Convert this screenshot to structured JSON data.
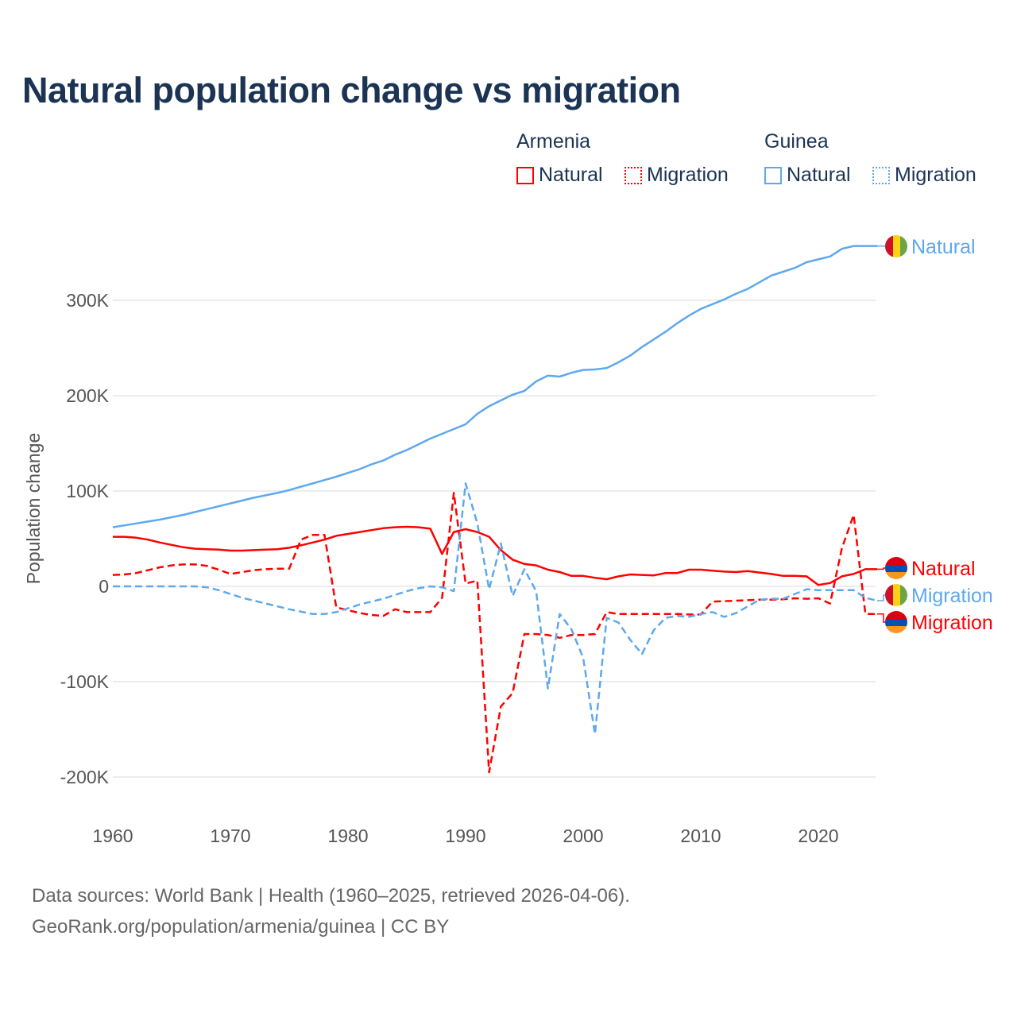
{
  "title": "Natural population change vs migration",
  "legend": {
    "groups": [
      {
        "name": "Armenia",
        "color": "#ff0000",
        "items": [
          "Natural",
          "Migration"
        ]
      },
      {
        "name": "Guinea",
        "color": "#5ea8ee",
        "items": [
          "Natural",
          "Migration"
        ]
      }
    ]
  },
  "source": {
    "line1": "Data sources: World Bank | Health (1960–2025, retrieved 2026-04-06).",
    "line2": "GeoRank.org/population/armenia/guinea | CC BY"
  },
  "chart_data": {
    "type": "line",
    "title": "Natural population change vs migration",
    "xlabel": "",
    "ylabel": "Population change",
    "xlim": [
      1960,
      2025
    ],
    "ylim": [
      -200000,
      300000
    ],
    "xticks": [
      1960,
      1970,
      1980,
      1990,
      2000,
      2010,
      2020
    ],
    "xtick_labels": [
      "1960",
      "1970",
      "1980",
      "1990",
      "2000",
      "2010",
      "2020"
    ],
    "yticks": [
      300000,
      200000,
      100000,
      0,
      -100000,
      -200000
    ],
    "ytick_labels": [
      "300K",
      "200K",
      "100K",
      "0",
      "-100K",
      "-200K"
    ],
    "grid": true,
    "x_start": 1960,
    "series": [
      {
        "name": "Armenia Natural",
        "country": "Armenia",
        "label": "Natural",
        "color": "#ff0000",
        "dash": false,
        "values": [
          52,
          52,
          51,
          49,
          46,
          43.5,
          41,
          39.5,
          39,
          38.5,
          37.5,
          37.5,
          38,
          38.5,
          39,
          40.5,
          43,
          46,
          49,
          53,
          55,
          57,
          59,
          61,
          62,
          62.5,
          62,
          60.5,
          34,
          57,
          60,
          57,
          52,
          38,
          28,
          23.5,
          22,
          17.5,
          15,
          11,
          11,
          9,
          7.5,
          10.5,
          12.5,
          12,
          11.5,
          14,
          14,
          17.5,
          17.5,
          16.5,
          15.5,
          15,
          16,
          14.5,
          13,
          11,
          11,
          10.5,
          1.5,
          3.5,
          10.5,
          13,
          18,
          18
        ]
      },
      {
        "name": "Armenia Migration",
        "country": "Armenia",
        "label": "Migration",
        "color": "#ff0000",
        "dash": true,
        "values": [
          12,
          12.5,
          14,
          17,
          20,
          22,
          23,
          23,
          21.5,
          17.5,
          13,
          15,
          17,
          18,
          18.5,
          18.5,
          49,
          54,
          54,
          -22,
          -25,
          -28,
          -30,
          -31,
          -24,
          -27,
          -27,
          -27,
          -12,
          98,
          3,
          6,
          -195,
          -126,
          -112,
          -50,
          -50,
          -51,
          -54,
          -51,
          -51,
          -50,
          -27,
          -29,
          -29,
          -29,
          -29,
          -29,
          -29,
          -29.5,
          -29.5,
          -16,
          -15.5,
          -15,
          -14.5,
          -14,
          -14,
          -13.5,
          -12.5,
          -13,
          -12.5,
          -18,
          40,
          75,
          -29,
          -29
        ]
      },
      {
        "name": "Guinea Natural",
        "country": "Guinea",
        "label": "Natural",
        "color": "#5ea8ee",
        "dash": false,
        "values": [
          62,
          64,
          66,
          68,
          70,
          72.5,
          75,
          78,
          81,
          84,
          87,
          90,
          93,
          95.5,
          98,
          101,
          104.5,
          108,
          111.5,
          115,
          119,
          123,
          128,
          132,
          138,
          143,
          149,
          155,
          160,
          165,
          170,
          181,
          189,
          195,
          201,
          205,
          215,
          221,
          220,
          224,
          227,
          227.5,
          229,
          235,
          242,
          251,
          259,
          267,
          276,
          284,
          291,
          296,
          301,
          307,
          312,
          319,
          326,
          330,
          334,
          340,
          343,
          346,
          354,
          357,
          357,
          357
        ]
      },
      {
        "name": "Guinea Migration",
        "country": "Guinea",
        "label": "Migration",
        "color": "#5ea8ee",
        "dash": true,
        "values": [
          0,
          0,
          0,
          0,
          0,
          0,
          0,
          0,
          -1,
          -4,
          -8,
          -12,
          -15,
          -18,
          -21,
          -24,
          -26.5,
          -29,
          -29,
          -27,
          -23,
          -19,
          -16,
          -13,
          -9,
          -5,
          -2,
          0,
          -1,
          -5,
          108,
          66,
          -3,
          45,
          -10,
          18,
          -5,
          -107,
          -29,
          -45,
          -75,
          -155,
          -33,
          -38,
          -56,
          -71,
          -46,
          -33,
          -31,
          -32,
          -29,
          -27,
          -32,
          -28,
          -21,
          -14,
          -13,
          -13,
          -8,
          -3,
          -4,
          -4,
          -4,
          -4,
          -12,
          -15
        ]
      }
    ],
    "values_unit": "thousands",
    "end_labels": [
      {
        "series": "Guinea Natural",
        "text": "Natural",
        "flag": "guinea-flag-icon"
      },
      {
        "series": "Armenia Natural",
        "text": "Natural",
        "flag": "armenia-flag-icon"
      },
      {
        "series": "Guinea Migration",
        "text": "Migration",
        "flag": "guinea-flag-icon"
      },
      {
        "series": "Armenia Migration",
        "text": "Migration",
        "flag": "armenia-flag-icon"
      }
    ]
  }
}
